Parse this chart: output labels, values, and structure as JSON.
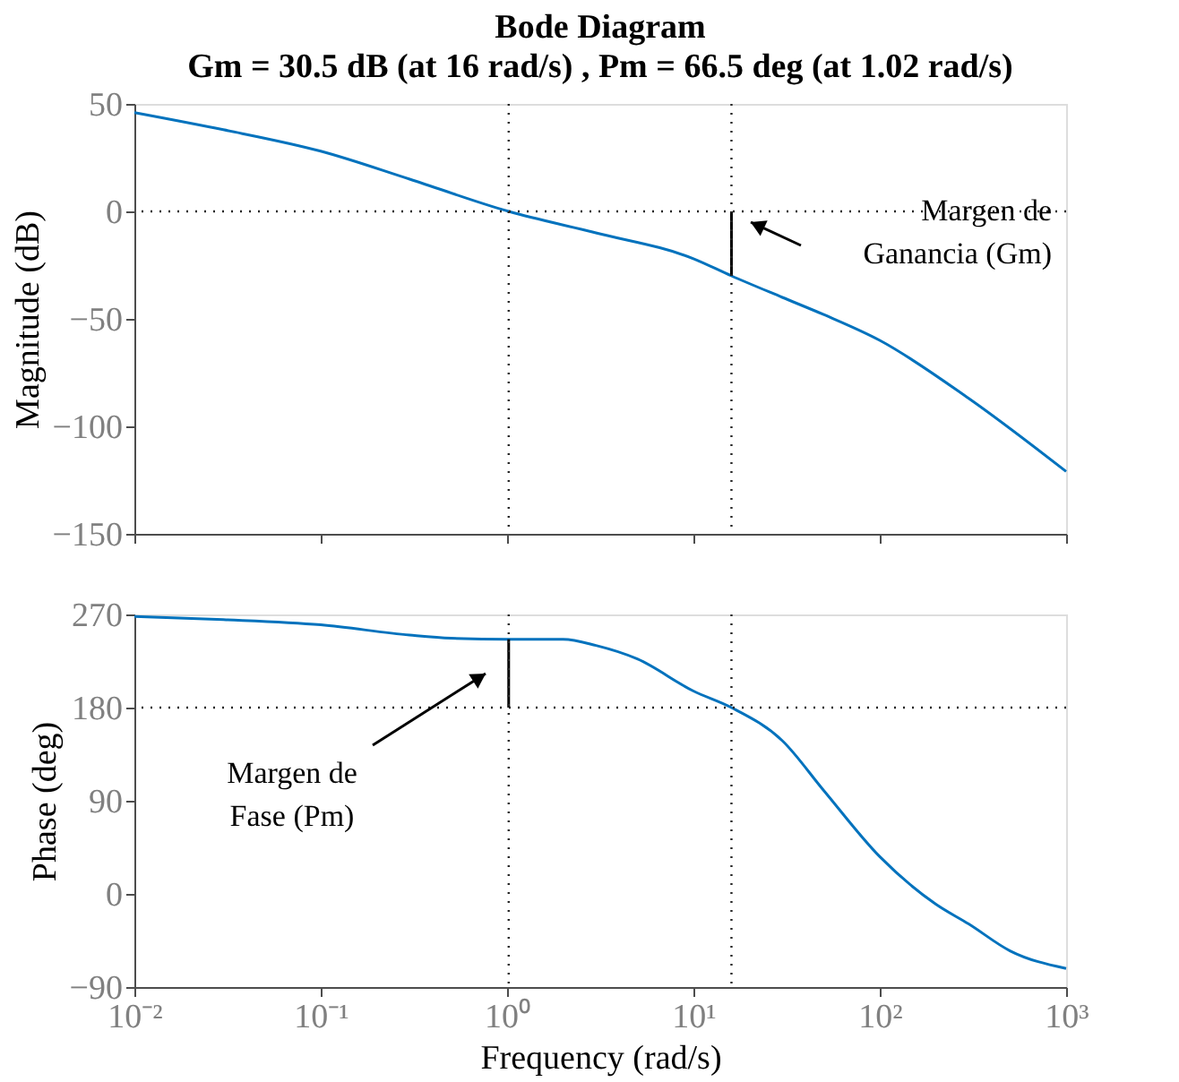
{
  "chart_data": [
    {
      "type": "line",
      "title": "Bode Diagram",
      "subtitle": "Gm = 30.5 dB (at 16 rad/s) ,  Pm = 66.5 deg (at 1.02 rad/s)",
      "ylabel": "Magnitude (dB)",
      "log": "x",
      "grid": false,
      "tick_labels": "y",
      "xlim": [
        0.01,
        1000
      ],
      "xticks": [
        0.01,
        0.1,
        1,
        10,
        100,
        1000
      ],
      "ylim": [
        -150,
        50
      ],
      "yticks": [
        -150,
        -100,
        -50,
        0,
        50
      ],
      "series": [
        {
          "color": "#0072bd",
          "x": [
            0.01,
            0.03,
            0.1,
            0.3,
            1.02,
            3,
            10,
            16,
            30,
            50,
            100,
            300,
            1000
          ],
          "values": [
            46,
            38,
            28,
            15,
            0,
            -10,
            -22,
            -30,
            -40,
            -48,
            -60,
            -87,
            -121
          ]
        },
        {
          "color": "#000000",
          "x": [
            16,
            16
          ],
          "values": [
            0,
            -30
          ]
        }
      ],
      "ref_lines": [
        {
          "axis": "y",
          "value": 0,
          "line_style": "dotted"
        },
        {
          "axis": "x",
          "value": 1.02,
          "line_style": "dotted"
        },
        {
          "axis": "x",
          "value": 16,
          "line_style": "dotted"
        }
      ],
      "annotations": [
        "Margen de\nGanancia (Gm)"
      ]
    },
    {
      "type": "line",
      "xlabel": "Frequency  (rad/s)",
      "ylabel": "Phase (deg)",
      "log": "x",
      "grid": false,
      "xlim": [
        0.01,
        1000
      ],
      "xticks": [
        {
          "value": 0.01,
          "label": "10⁻²"
        },
        {
          "value": 0.1,
          "label": "10⁻¹"
        },
        {
          "value": 1,
          "label": "10⁰"
        },
        {
          "value": 10,
          "label": "10¹"
        },
        {
          "value": 100,
          "label": "10²"
        },
        {
          "value": 1000,
          "label": "10³"
        }
      ],
      "ylim": [
        -90,
        270
      ],
      "yticks": [
        -90,
        0,
        90,
        180,
        270
      ],
      "series": [
        {
          "color": "#0072bd",
          "x": [
            0.01,
            0.03,
            0.1,
            0.3,
            0.5,
            1.02,
            2,
            3,
            5,
            10,
            16,
            30,
            50,
            100,
            200,
            300,
            500,
            1000
          ],
          "values": [
            268,
            265,
            260,
            250,
            247,
            246,
            246,
            240,
            227,
            196,
            180,
            148,
            100,
            36,
            -10,
            -29,
            -55,
            -72
          ]
        },
        {
          "color": "#000000",
          "x": [
            1.02,
            1.02
          ],
          "values": [
            180,
            246
          ]
        }
      ],
      "ref_lines": [
        {
          "axis": "y",
          "value": 180,
          "line_style": "dotted"
        },
        {
          "axis": "x",
          "value": 1.02,
          "line_style": "dotted"
        },
        {
          "axis": "x",
          "value": 16,
          "line_style": "dotted"
        }
      ],
      "annotations": [
        "Margen de\nFase (Pm)"
      ]
    }
  ]
}
